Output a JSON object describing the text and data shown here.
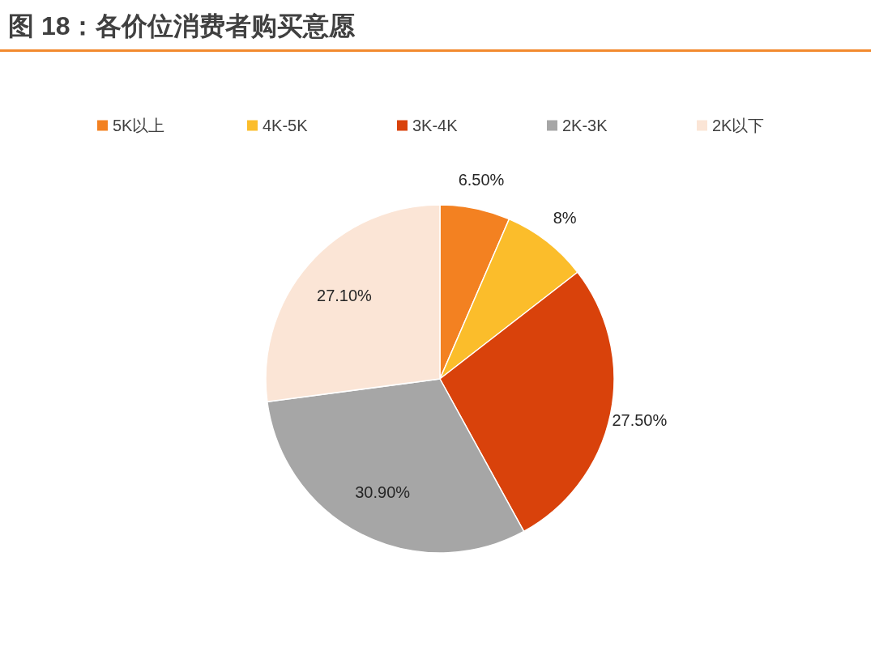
{
  "chart_data": {
    "type": "pie",
    "title": "图 18：各价位消费者购买意愿",
    "categories": [
      "5K以上",
      "4K-5K",
      "3K-4K",
      "2K-3K",
      "2K以下"
    ],
    "values": [
      6.5,
      8,
      27.5,
      30.9,
      27.1
    ],
    "colors": [
      "#F38121",
      "#FBBD2B",
      "#D9420B",
      "#A6A6A6",
      "#FBE5D6"
    ],
    "value_labels": [
      "6.50%",
      "8%",
      "27.50%",
      "30.90%",
      "27.10%"
    ],
    "legend": "top"
  }
}
